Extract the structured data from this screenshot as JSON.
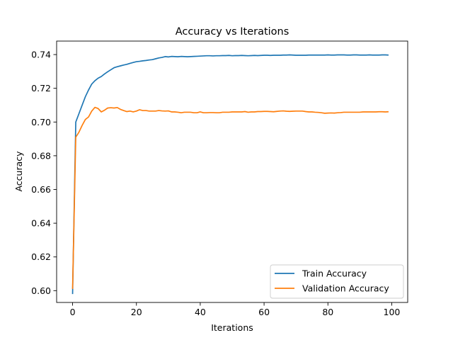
{
  "chart_data": {
    "type": "line",
    "title": "Accuracy vs Iterations",
    "xlabel": "Iterations",
    "ylabel": "Accuracy",
    "xlim": [
      -5,
      105
    ],
    "ylim": [
      0.593,
      0.748
    ],
    "xticks": [
      0,
      20,
      40,
      60,
      80,
      100
    ],
    "yticks": [
      0.6,
      0.62,
      0.64,
      0.66,
      0.68,
      0.7,
      0.72,
      0.74
    ],
    "ytick_labels": [
      "0.60",
      "0.62",
      "0.64",
      "0.66",
      "0.68",
      "0.70",
      "0.72",
      "0.74"
    ],
    "grid": false,
    "legend_position": "lower right",
    "series": [
      {
        "name": "Train Accuracy",
        "color": "#1f77b4",
        "x": [
          0,
          1,
          2,
          3,
          4,
          5,
          6,
          7,
          8,
          9,
          10,
          11,
          12,
          13,
          14,
          15,
          16,
          17,
          18,
          19,
          20,
          21,
          22,
          23,
          24,
          25,
          26,
          27,
          28,
          29,
          30,
          31,
          32,
          33,
          34,
          35,
          36,
          37,
          38,
          39,
          40,
          41,
          42,
          43,
          44,
          45,
          46,
          47,
          48,
          49,
          50,
          51,
          52,
          53,
          54,
          55,
          56,
          57,
          58,
          59,
          60,
          61,
          62,
          63,
          64,
          65,
          66,
          67,
          68,
          69,
          70,
          71,
          72,
          73,
          74,
          75,
          76,
          77,
          78,
          79,
          80,
          81,
          82,
          83,
          84,
          85,
          86,
          87,
          88,
          89,
          90,
          91,
          92,
          93,
          94,
          95,
          96,
          97,
          98,
          99
        ],
        "values": [
          0.598,
          0.7,
          0.705,
          0.71,
          0.715,
          0.719,
          0.7225,
          0.7245,
          0.726,
          0.727,
          0.7285,
          0.7298,
          0.731,
          0.7322,
          0.7328,
          0.7333,
          0.7338,
          0.7342,
          0.7348,
          0.7353,
          0.7358,
          0.736,
          0.7363,
          0.7365,
          0.7368,
          0.737,
          0.7375,
          0.738,
          0.7383,
          0.7388,
          0.7386,
          0.7389,
          0.7388,
          0.7387,
          0.7389,
          0.7388,
          0.7387,
          0.7388,
          0.7389,
          0.739,
          0.7391,
          0.7392,
          0.7393,
          0.7393,
          0.7392,
          0.7393,
          0.7393,
          0.7394,
          0.7394,
          0.7395,
          0.7393,
          0.7394,
          0.7394,
          0.7395,
          0.7394,
          0.7393,
          0.7394,
          0.7395,
          0.7394,
          0.7395,
          0.7396,
          0.7396,
          0.7395,
          0.7396,
          0.7396,
          0.7396,
          0.7397,
          0.7397,
          0.7398,
          0.7397,
          0.7396,
          0.7396,
          0.7396,
          0.7396,
          0.7397,
          0.7397,
          0.7397,
          0.7397,
          0.7397,
          0.7397,
          0.7398,
          0.7397,
          0.7397,
          0.7398,
          0.7398,
          0.7398,
          0.7397,
          0.7397,
          0.7398,
          0.7398,
          0.7397,
          0.7397,
          0.7397,
          0.7398,
          0.7397,
          0.7397,
          0.7397,
          0.7398,
          0.7398,
          0.7397
        ]
      },
      {
        "name": "Validation Accuracy",
        "color": "#ff7f0e",
        "x": [
          0,
          1,
          2,
          3,
          4,
          5,
          6,
          7,
          8,
          9,
          10,
          11,
          12,
          13,
          14,
          15,
          16,
          17,
          18,
          19,
          20,
          21,
          22,
          23,
          24,
          25,
          26,
          27,
          28,
          29,
          30,
          31,
          32,
          33,
          34,
          35,
          36,
          37,
          38,
          39,
          40,
          41,
          42,
          43,
          44,
          45,
          46,
          47,
          48,
          49,
          50,
          51,
          52,
          53,
          54,
          55,
          56,
          57,
          58,
          59,
          60,
          61,
          62,
          63,
          64,
          65,
          66,
          67,
          68,
          69,
          70,
          71,
          72,
          73,
          74,
          75,
          76,
          77,
          78,
          79,
          80,
          81,
          82,
          83,
          84,
          85,
          86,
          87,
          88,
          89,
          90,
          91,
          92,
          93,
          94,
          95,
          96,
          97,
          98,
          99
        ],
        "values": [
          0.601,
          0.691,
          0.694,
          0.698,
          0.7015,
          0.703,
          0.7065,
          0.7087,
          0.708,
          0.706,
          0.707,
          0.7083,
          0.7085,
          0.7083,
          0.7086,
          0.7075,
          0.7068,
          0.7062,
          0.7065,
          0.706,
          0.7065,
          0.7073,
          0.7068,
          0.7068,
          0.7065,
          0.7065,
          0.7065,
          0.7068,
          0.7066,
          0.7065,
          0.7066,
          0.706,
          0.706,
          0.7058,
          0.7055,
          0.7058,
          0.7058,
          0.7058,
          0.7055,
          0.7055,
          0.706,
          0.7055,
          0.7055,
          0.7056,
          0.7056,
          0.7055,
          0.7055,
          0.7058,
          0.7058,
          0.7058,
          0.706,
          0.706,
          0.706,
          0.706,
          0.7062,
          0.7058,
          0.706,
          0.706,
          0.7062,
          0.7062,
          0.7063,
          0.7063,
          0.7062,
          0.7061,
          0.7063,
          0.7065,
          0.7066,
          0.7064,
          0.7063,
          0.7064,
          0.7065,
          0.7065,
          0.7065,
          0.7062,
          0.706,
          0.706,
          0.7058,
          0.7057,
          0.7055,
          0.7052,
          0.7053,
          0.7054,
          0.7053,
          0.7055,
          0.7056,
          0.7058,
          0.7058,
          0.7058,
          0.7058,
          0.7058,
          0.7058,
          0.706,
          0.706,
          0.706,
          0.706,
          0.706,
          0.7061,
          0.7061,
          0.706,
          0.7061
        ]
      }
    ]
  }
}
